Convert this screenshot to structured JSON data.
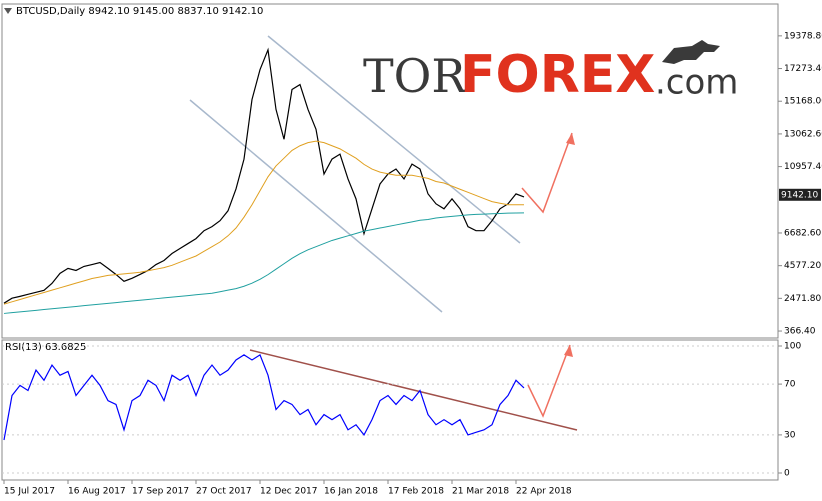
{
  "logo": {
    "part1": "TOR",
    "part2": "FOREX",
    "part3": ".com"
  },
  "chart_data": [
    {
      "type": "line",
      "title": "BTCUSD,Daily  8942.10 9145.00 8837.10 9142.10",
      "ylim": [
        -82,
        21430
      ],
      "yticks": [
        {
          "value": 366.4,
          "label": "366.40"
        },
        {
          "value": 2471.8,
          "label": "2471.80"
        },
        {
          "value": 4577.2,
          "label": "4577.20"
        },
        {
          "value": 6682.6,
          "label": "6682.60"
        },
        {
          "value": 10957.4,
          "label": "10957.40"
        },
        {
          "value": 13062.6,
          "label": "13062.60"
        },
        {
          "value": 15168,
          "label": "15168.00"
        },
        {
          "value": 17273.4,
          "label": "17273.40"
        },
        {
          "value": 19378.8,
          "label": "19378.80"
        }
      ],
      "current_price": {
        "value": 9142.1,
        "label": "9142.10"
      },
      "series": [
        {
          "color": "#000000",
          "values": [
            2160,
            2480,
            2600,
            2730,
            2860,
            2990,
            3440,
            4080,
            4400,
            4270,
            4530,
            4650,
            4780,
            4400,
            4010,
            3570,
            3760,
            4010,
            4270,
            4650,
            4910,
            5360,
            5680,
            6000,
            6320,
            6830,
            7090,
            7470,
            8110,
            9520,
            11440,
            15280,
            17200,
            18480,
            14640,
            12720,
            15920,
            16240,
            14640,
            13360,
            10480,
            11440,
            11760,
            10160,
            8880,
            6640,
            8240,
            9840,
            10480,
            10800,
            10160,
            11120,
            10800,
            9200,
            8560,
            8240,
            8880,
            8240,
            7090,
            6830,
            6830,
            7470,
            8240,
            8560,
            9200,
            9000
          ]
        },
        {
          "color": "#e0a020",
          "values": [
            2100,
            2250,
            2400,
            2550,
            2700,
            2850,
            3000,
            3150,
            3300,
            3450,
            3600,
            3750,
            3850,
            3950,
            4000,
            4050,
            4100,
            4150,
            4250,
            4350,
            4450,
            4600,
            4800,
            5000,
            5200,
            5500,
            5800,
            6100,
            6500,
            7000,
            7700,
            8500,
            9400,
            10300,
            11000,
            11500,
            12000,
            12300,
            12500,
            12600,
            12500,
            12300,
            12100,
            11800,
            11500,
            11100,
            10800,
            10600,
            10500,
            10400,
            10400,
            10400,
            10300,
            10200,
            10000,
            9900,
            9700,
            9500,
            9300,
            9100,
            8900,
            8700,
            8600,
            8500,
            8500,
            8500
          ]
        },
        {
          "color": "#20a0a0",
          "values": [
            1500,
            1550,
            1600,
            1650,
            1700,
            1750,
            1800,
            1850,
            1900,
            1950,
            2000,
            2050,
            2100,
            2150,
            2200,
            2250,
            2300,
            2350,
            2400,
            2450,
            2500,
            2550,
            2600,
            2650,
            2700,
            2750,
            2800,
            2900,
            3000,
            3100,
            3250,
            3450,
            3700,
            4000,
            4350,
            4700,
            5050,
            5350,
            5600,
            5800,
            6000,
            6200,
            6350,
            6500,
            6650,
            6800,
            6900,
            7000,
            7100,
            7200,
            7300,
            7400,
            7500,
            7550,
            7650,
            7700,
            7750,
            7800,
            7850,
            7880,
            7900,
            7920,
            7940,
            7960,
            7970,
            7980
          ]
        }
      ]
    },
    {
      "type": "line",
      "title": "RSI(13) 63.6825",
      "ylim": [
        0,
        100
      ],
      "yticks": [
        0,
        30,
        70,
        100
      ],
      "categories": [
        "15 Jul 2017",
        null,
        null,
        null,
        null,
        null,
        null,
        null,
        "16 Aug 2017",
        null,
        null,
        null,
        null,
        null,
        null,
        null,
        "17 Sep 2017",
        null,
        null,
        null,
        null,
        null,
        null,
        null,
        "27 Oct 2017",
        null,
        null,
        null,
        null,
        null,
        null,
        null,
        "12 Dec 2017",
        null,
        null,
        null,
        null,
        null,
        null,
        null,
        "16 Jan 2018",
        null,
        null,
        null,
        null,
        null,
        null,
        null,
        "17 Feb 2018",
        null,
        null,
        null,
        null,
        null,
        null,
        null,
        "21 Mar 2018",
        null,
        null,
        null,
        null,
        null,
        null,
        null,
        "22 Apr 2018",
        null
      ],
      "series": [
        {
          "color": "#0000ff",
          "values": [
            26,
            61,
            69,
            65,
            81,
            73,
            85,
            77,
            80,
            61,
            69,
            77,
            69,
            57,
            54,
            34,
            57,
            61,
            73,
            69,
            57,
            77,
            73,
            77,
            61,
            77,
            85,
            77,
            81,
            89,
            93,
            89,
            93,
            77,
            50,
            57,
            54,
            46,
            50,
            38,
            46,
            42,
            46,
            34,
            38,
            30,
            42,
            57,
            61,
            54,
            61,
            57,
            65,
            46,
            38,
            42,
            38,
            42,
            30,
            32,
            34,
            38,
            54,
            61,
            73,
            67
          ]
        }
      ]
    }
  ]
}
